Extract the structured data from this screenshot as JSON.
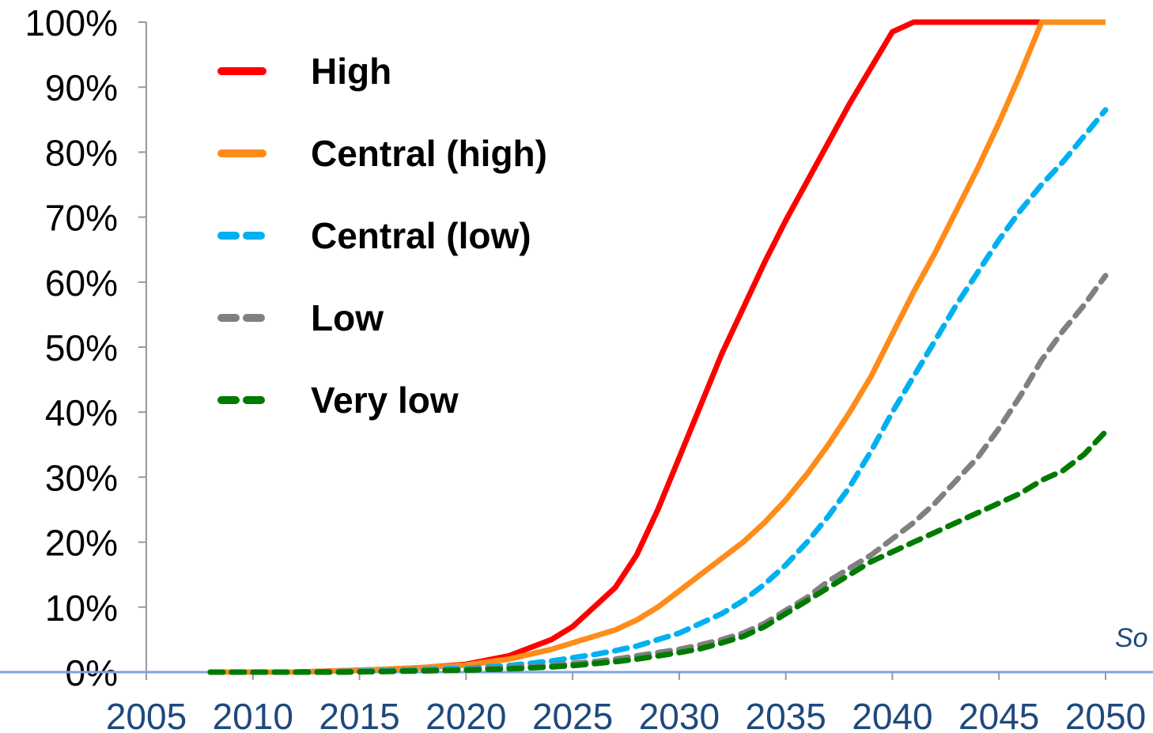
{
  "chart_data": {
    "type": "line",
    "title": "",
    "xlabel": "",
    "ylabel": "",
    "xlim": [
      2005,
      2050
    ],
    "ylim": [
      0,
      100
    ],
    "x_ticks": [
      "2005",
      "2010",
      "2015",
      "2020",
      "2025",
      "2030",
      "2035",
      "2040",
      "2045",
      "2050"
    ],
    "y_ticks": [
      "0%",
      "10%",
      "20%",
      "30%",
      "40%",
      "50%",
      "60%",
      "70%",
      "80%",
      "90%",
      "100%"
    ],
    "grid": false,
    "legend_position": "top-left",
    "x": [
      2008,
      2010,
      2012,
      2014,
      2016,
      2018,
      2020,
      2022,
      2024,
      2025,
      2026,
      2027,
      2028,
      2029,
      2030,
      2031,
      2032,
      2033,
      2034,
      2035,
      2036,
      2037,
      2038,
      2039,
      2040,
      2041,
      2042,
      2043,
      2044,
      2045,
      2046,
      2047,
      2048,
      2049,
      2050
    ],
    "series": [
      {
        "name": "High",
        "color": "#FF0000",
        "dash": "solid",
        "values": [
          0,
          0,
          0,
          0.2,
          0.4,
          0.7,
          1.2,
          2.5,
          5,
          7,
          10,
          13,
          18,
          25,
          33,
          41,
          49,
          56,
          63,
          69.5,
          75.5,
          81.5,
          87.5,
          93,
          98.5,
          100,
          100,
          100,
          100,
          100,
          100,
          100,
          100,
          100,
          100
        ]
      },
      {
        "name": "Central (high)",
        "color": "#FF8C1A",
        "dash": "solid",
        "values": [
          0,
          0,
          0,
          0.2,
          0.4,
          0.7,
          1.1,
          2,
          3.5,
          4.5,
          5.5,
          6.5,
          8,
          10,
          12.5,
          15,
          17.5,
          20,
          23,
          26.5,
          30.5,
          35,
          40,
          45.5,
          52,
          58.5,
          64.5,
          71,
          77.5,
          84.5,
          92,
          100,
          100,
          100,
          100
        ]
      },
      {
        "name": "Central (low)",
        "color": "#00B0F0",
        "dash": "dashed",
        "values": [
          0,
          0,
          0,
          0.1,
          0.2,
          0.4,
          0.6,
          1,
          1.7,
          2.2,
          2.7,
          3.3,
          4,
          5,
          6,
          7.5,
          9,
          11,
          13.5,
          16.5,
          20,
          24,
          28.5,
          34,
          40,
          45.5,
          51,
          56.5,
          61.5,
          66.5,
          71,
          75,
          78.5,
          82.5,
          86.5
        ]
      },
      {
        "name": "Low",
        "color": "#808080",
        "dash": "dashed",
        "values": [
          0,
          0,
          0,
          0,
          0.1,
          0.2,
          0.4,
          0.7,
          1,
          1.3,
          1.6,
          2,
          2.5,
          3,
          3.5,
          4.2,
          5,
          6,
          7.5,
          9.5,
          11.5,
          14,
          16,
          18,
          20.5,
          23,
          26,
          29.5,
          33,
          37.5,
          42.5,
          48,
          52.5,
          56.5,
          61
        ]
      },
      {
        "name": "Very low",
        "color": "#007A00",
        "dash": "dashed",
        "values": [
          0,
          0,
          0,
          0,
          0.1,
          0.2,
          0.3,
          0.5,
          0.8,
          1,
          1.3,
          1.6,
          2,
          2.5,
          3,
          3.6,
          4.5,
          5.5,
          7,
          9,
          11,
          13,
          15,
          17,
          18.5,
          20,
          21.5,
          23,
          24.5,
          26,
          27.5,
          29.5,
          31,
          33.5,
          37
        ]
      }
    ],
    "annotations": [
      "So"
    ]
  }
}
